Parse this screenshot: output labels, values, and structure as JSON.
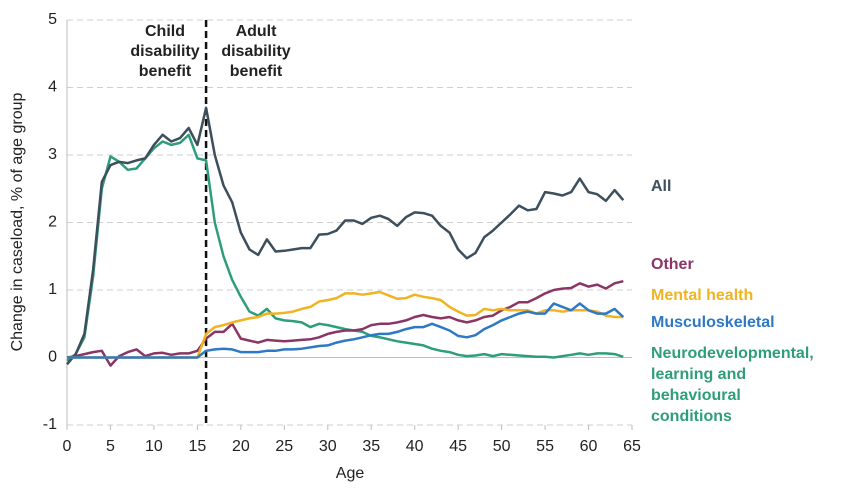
{
  "chart_data": {
    "type": "line",
    "y_axis_label": "Change in caseload, % of age group",
    "x_axis_label": "Age",
    "annotations": [
      "Child disability benefit",
      "Adult disability benefit"
    ],
    "divider_x": 16,
    "xlim": [
      0,
      65
    ],
    "xticks": [
      0,
      5,
      10,
      15,
      20,
      25,
      30,
      35,
      40,
      45,
      50,
      55,
      60,
      65
    ],
    "ylim": [
      -1,
      5
    ],
    "yticks": [
      -1,
      0,
      1,
      2,
      3,
      4,
      5
    ],
    "grid": true,
    "x": [
      0,
      1,
      2,
      3,
      4,
      5,
      6,
      7,
      8,
      9,
      10,
      11,
      12,
      13,
      14,
      15,
      16,
      17,
      18,
      19,
      20,
      21,
      22,
      23,
      24,
      25,
      26,
      27,
      28,
      29,
      30,
      31,
      32,
      33,
      34,
      35,
      36,
      37,
      38,
      39,
      40,
      41,
      42,
      43,
      44,
      45,
      46,
      47,
      48,
      49,
      50,
      51,
      52,
      53,
      54,
      55,
      56,
      57,
      58,
      59,
      60,
      61,
      62,
      63,
      64
    ],
    "series": [
      {
        "name": "All",
        "color": "#3d4f5c",
        "values": [
          -0.1,
          0.05,
          0.35,
          1.3,
          2.6,
          2.85,
          2.9,
          2.88,
          2.92,
          2.95,
          3.15,
          3.3,
          3.2,
          3.25,
          3.4,
          3.15,
          3.7,
          3.0,
          2.55,
          2.3,
          1.85,
          1.6,
          1.52,
          1.75,
          1.57,
          1.58,
          1.6,
          1.62,
          1.62,
          1.82,
          1.83,
          1.88,
          2.03,
          2.03,
          1.98,
          2.07,
          2.1,
          2.05,
          1.95,
          2.08,
          2.15,
          2.14,
          2.1,
          1.95,
          1.85,
          1.6,
          1.47,
          1.55,
          1.78,
          1.88,
          2.0,
          2.12,
          2.25,
          2.18,
          2.2,
          2.45,
          2.43,
          2.4,
          2.45,
          2.65,
          2.45,
          2.42,
          2.32,
          2.48,
          2.33
        ]
      },
      {
        "name": "Other",
        "color": "#8b3566",
        "values": [
          0,
          0.02,
          0.05,
          0.08,
          0.1,
          -0.12,
          0.02,
          0.08,
          0.12,
          0.02,
          0.06,
          0.07,
          0.04,
          0.06,
          0.06,
          0.1,
          0.28,
          0.38,
          0.38,
          0.5,
          0.28,
          0.25,
          0.22,
          0.26,
          0.25,
          0.24,
          0.25,
          0.26,
          0.27,
          0.3,
          0.35,
          0.38,
          0.4,
          0.4,
          0.42,
          0.48,
          0.5,
          0.5,
          0.52,
          0.55,
          0.6,
          0.63,
          0.6,
          0.58,
          0.6,
          0.55,
          0.52,
          0.55,
          0.6,
          0.62,
          0.7,
          0.75,
          0.82,
          0.82,
          0.88,
          0.95,
          1.0,
          1.02,
          1.03,
          1.1,
          1.05,
          1.08,
          1.02,
          1.1,
          1.13
        ]
      },
      {
        "name": "Mental health",
        "color": "#f0b323",
        "values": [
          0,
          0,
          0,
          0,
          0,
          0,
          0,
          0,
          0,
          0,
          0,
          0,
          0,
          0,
          0,
          0,
          0.35,
          0.45,
          0.48,
          0.52,
          0.55,
          0.58,
          0.6,
          0.65,
          0.65,
          0.66,
          0.68,
          0.72,
          0.75,
          0.83,
          0.85,
          0.88,
          0.95,
          0.95,
          0.93,
          0.95,
          0.97,
          0.92,
          0.87,
          0.88,
          0.93,
          0.9,
          0.88,
          0.85,
          0.75,
          0.68,
          0.62,
          0.63,
          0.72,
          0.7,
          0.72,
          0.7,
          0.7,
          0.7,
          0.65,
          0.7,
          0.7,
          0.68,
          0.7,
          0.7,
          0.7,
          0.68,
          0.62,
          0.6,
          0.6
        ]
      },
      {
        "name": "Musculoskeletal",
        "color": "#2f79c4",
        "values": [
          0,
          0,
          0,
          0,
          0,
          0,
          0,
          0,
          0,
          0,
          0,
          0,
          0,
          0,
          0,
          0,
          0.1,
          0.12,
          0.13,
          0.12,
          0.08,
          0.08,
          0.08,
          0.1,
          0.1,
          0.12,
          0.12,
          0.13,
          0.15,
          0.17,
          0.18,
          0.22,
          0.25,
          0.27,
          0.3,
          0.33,
          0.35,
          0.35,
          0.38,
          0.42,
          0.45,
          0.45,
          0.5,
          0.45,
          0.4,
          0.32,
          0.3,
          0.33,
          0.42,
          0.48,
          0.55,
          0.6,
          0.65,
          0.68,
          0.65,
          0.65,
          0.8,
          0.75,
          0.7,
          0.8,
          0.7,
          0.65,
          0.65,
          0.72,
          0.6
        ]
      },
      {
        "name": "Neurodevelopmental, learning and behavioural conditions",
        "color": "#2e9e7a",
        "values": [
          -0.05,
          0.05,
          0.3,
          1.2,
          2.5,
          2.98,
          2.9,
          2.78,
          2.8,
          2.95,
          3.1,
          3.2,
          3.15,
          3.18,
          3.3,
          2.95,
          2.92,
          2.0,
          1.5,
          1.15,
          0.9,
          0.68,
          0.62,
          0.72,
          0.58,
          0.55,
          0.54,
          0.52,
          0.45,
          0.5,
          0.48,
          0.45,
          0.42,
          0.4,
          0.38,
          0.32,
          0.3,
          0.27,
          0.24,
          0.22,
          0.2,
          0.18,
          0.13,
          0.1,
          0.08,
          0.04,
          0.02,
          0.03,
          0.05,
          0.02,
          0.05,
          0.04,
          0.03,
          0.02,
          0.01,
          0.01,
          0,
          0.02,
          0.04,
          0.06,
          0.04,
          0.06,
          0.06,
          0.05,
          0.01
        ]
      }
    ]
  }
}
